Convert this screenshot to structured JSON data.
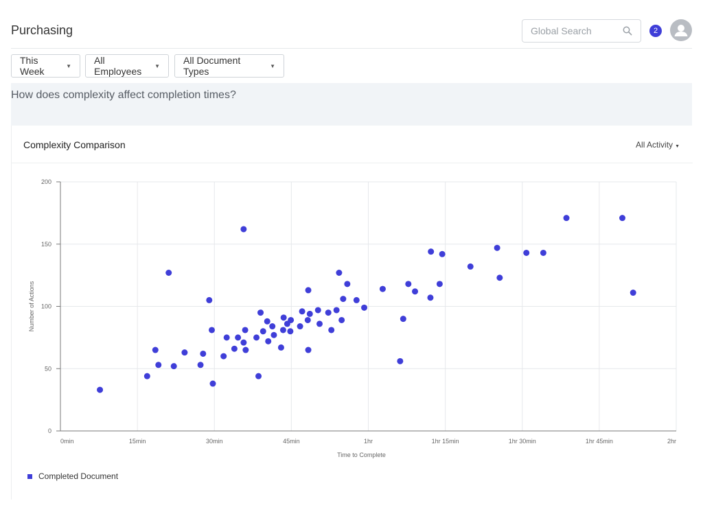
{
  "header": {
    "title": "Purchasing",
    "search": {
      "placeholder": "Global Search",
      "value": ""
    },
    "notification_count": "2",
    "icons": {
      "search": "search-icon",
      "avatar": "user-avatar-icon"
    }
  },
  "filters": [
    {
      "label": "This Week"
    },
    {
      "label": "All Employees"
    },
    {
      "label": "All Document Types"
    }
  ],
  "question": "How does complexity affect completion times?",
  "card": {
    "title": "Complexity Comparison",
    "filter_label": "All Activity"
  },
  "colors": {
    "accent": "#3f3ed8",
    "grid": "#e6e8eb",
    "question_bg": "#f1f4f7"
  },
  "chart_data": {
    "type": "scatter",
    "xlabel": "Time to Complete",
    "ylabel": "Number of Actions",
    "xlim": [
      0,
      120
    ],
    "ylim": [
      0,
      200
    ],
    "x_ticks": [
      {
        "value": 0,
        "label": "0min"
      },
      {
        "value": 15,
        "label": "15min"
      },
      {
        "value": 30,
        "label": "30min"
      },
      {
        "value": 45,
        "label": "45min"
      },
      {
        "value": 60,
        "label": "1hr"
      },
      {
        "value": 75,
        "label": "1hr 15min"
      },
      {
        "value": 90,
        "label": "1hr 30min"
      },
      {
        "value": 105,
        "label": "1hr 45min"
      },
      {
        "value": 120,
        "label": "2hr"
      }
    ],
    "y_ticks": [
      0,
      50,
      100,
      150,
      200
    ],
    "grid": true,
    "legend_position": "bottom-left",
    "series": [
      {
        "name": "Completed Document",
        "color": "#3f3ed8",
        "points": [
          [
            7.7,
            33
          ],
          [
            16.9,
            44
          ],
          [
            18.5,
            65
          ],
          [
            19.1,
            53
          ],
          [
            21.1,
            127
          ],
          [
            22.1,
            52
          ],
          [
            24.2,
            63
          ],
          [
            27.3,
            53
          ],
          [
            27.8,
            62
          ],
          [
            29.0,
            105
          ],
          [
            29.5,
            81
          ],
          [
            29.7,
            38
          ],
          [
            31.8,
            60
          ],
          [
            32.4,
            75
          ],
          [
            33.9,
            66
          ],
          [
            34.6,
            75
          ],
          [
            35.7,
            162
          ],
          [
            35.7,
            71
          ],
          [
            36.0,
            81
          ],
          [
            36.1,
            65
          ],
          [
            38.2,
            75
          ],
          [
            38.6,
            44
          ],
          [
            39.0,
            95
          ],
          [
            39.5,
            80
          ],
          [
            40.3,
            88
          ],
          [
            40.5,
            72
          ],
          [
            41.3,
            84
          ],
          [
            41.6,
            77
          ],
          [
            43.0,
            67
          ],
          [
            43.4,
            81
          ],
          [
            43.5,
            91
          ],
          [
            44.2,
            86
          ],
          [
            44.8,
            80
          ],
          [
            44.9,
            89
          ],
          [
            46.7,
            84
          ],
          [
            47.1,
            96
          ],
          [
            48.2,
            89
          ],
          [
            48.3,
            65
          ],
          [
            48.3,
            113
          ],
          [
            48.6,
            94
          ],
          [
            50.2,
            97
          ],
          [
            50.5,
            86
          ],
          [
            52.2,
            95
          ],
          [
            52.8,
            81
          ],
          [
            53.8,
            97
          ],
          [
            54.3,
            127
          ],
          [
            54.8,
            89
          ],
          [
            55.1,
            106
          ],
          [
            55.9,
            118
          ],
          [
            57.7,
            105
          ],
          [
            59.2,
            99
          ],
          [
            62.8,
            114
          ],
          [
            66.2,
            56
          ],
          [
            66.8,
            90
          ],
          [
            67.8,
            118
          ],
          [
            69.1,
            112
          ],
          [
            72.1,
            107
          ],
          [
            72.2,
            144
          ],
          [
            73.9,
            118
          ],
          [
            74.4,
            142
          ],
          [
            79.9,
            132
          ],
          [
            85.1,
            147
          ],
          [
            85.6,
            123
          ],
          [
            90.8,
            143
          ],
          [
            94.1,
            143
          ],
          [
            98.6,
            171
          ],
          [
            109.5,
            171
          ],
          [
            111.6,
            111
          ]
        ]
      }
    ]
  }
}
